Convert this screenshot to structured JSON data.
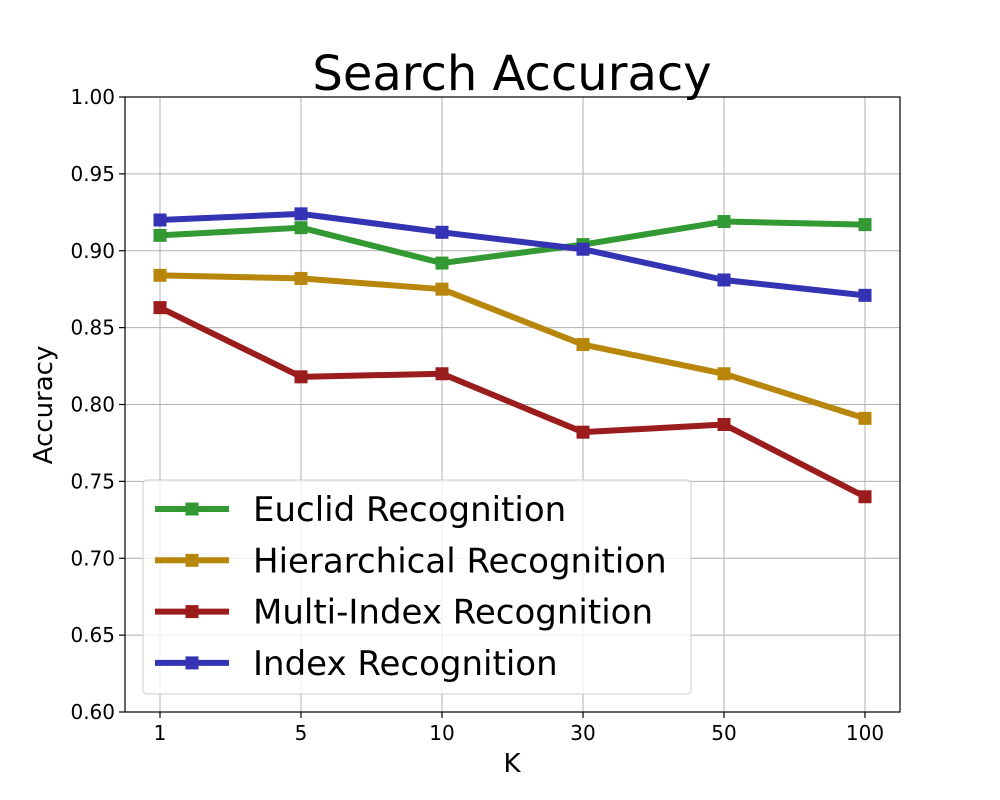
{
  "chart_data": {
    "type": "line",
    "title": "Search Accuracy",
    "xlabel": "K",
    "ylabel": "Accuracy",
    "categories": [
      "1",
      "5",
      "10",
      "30",
      "50",
      "100"
    ],
    "ylim": [
      0.6,
      1.0
    ],
    "yticks": [
      "0.60",
      "0.65",
      "0.70",
      "0.75",
      "0.80",
      "0.85",
      "0.90",
      "0.95",
      "1.00"
    ],
    "grid": true,
    "legend_position": "lower-left",
    "marker": "square",
    "series": [
      {
        "name": "Euclid Recognition",
        "color": "#339933",
        "values": [
          0.91,
          0.915,
          0.892,
          0.904,
          0.919,
          0.917
        ]
      },
      {
        "name": "Hierarchical Recognition",
        "color": "#b8860b",
        "values": [
          0.884,
          0.882,
          0.875,
          0.839,
          0.82,
          0.791
        ]
      },
      {
        "name": "Multi-Index Recognition",
        "color": "#9b1c1c",
        "values": [
          0.863,
          0.818,
          0.82,
          0.782,
          0.787,
          0.74
        ]
      },
      {
        "name": "Index Recognition",
        "color": "#3333b3",
        "values": [
          0.92,
          0.924,
          0.912,
          0.901,
          0.881,
          0.871
        ]
      }
    ]
  }
}
